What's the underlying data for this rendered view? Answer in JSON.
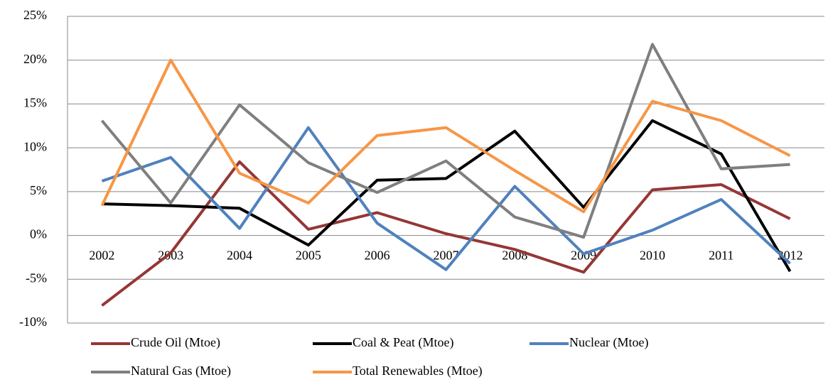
{
  "chart_data": {
    "type": "line",
    "categories": [
      "2002",
      "2003",
      "2004",
      "2005",
      "2006",
      "2007",
      "2008",
      "2009",
      "2010",
      "2011",
      "2012"
    ],
    "series": [
      {
        "name": "Crude Oil (Mtoe)",
        "color": "#953735",
        "values": [
          -8.0,
          -2.0,
          8.4,
          0.7,
          2.6,
          0.2,
          -1.6,
          -4.2,
          5.2,
          5.8,
          1.9
        ]
      },
      {
        "name": "Coal & Peat (Mtoe)",
        "color": "#000000",
        "values": [
          3.6,
          3.4,
          3.1,
          -1.1,
          6.3,
          6.5,
          11.9,
          3.2,
          13.1,
          9.3,
          -4.1
        ]
      },
      {
        "name": "Nuclear (Mtoe)",
        "color": "#4f81bd",
        "values": [
          6.2,
          8.9,
          0.8,
          12.3,
          1.4,
          -3.9,
          5.6,
          -2.1,
          0.6,
          4.1,
          -3.2
        ]
      },
      {
        "name": "Natural Gas (Mtoe)",
        "color": "#7f7f7f",
        "values": [
          13.1,
          3.7,
          14.9,
          8.3,
          4.9,
          8.5,
          2.1,
          -0.2,
          21.8,
          7.6,
          8.1
        ]
      },
      {
        "name": "Total Renewables (Mtoe)",
        "color": "#f79646",
        "values": [
          3.4,
          20.0,
          7.1,
          3.7,
          11.4,
          12.3,
          7.4,
          2.7,
          15.3,
          13.1,
          9.1
        ]
      }
    ],
    "ylim": [
      -10,
      25
    ],
    "yticks": [
      {
        "value": -10,
        "label": "-10%"
      },
      {
        "value": -5,
        "label": "-5%"
      },
      {
        "value": 0,
        "label": "0%"
      },
      {
        "value": 5,
        "label": "5%"
      },
      {
        "value": 10,
        "label": "10%"
      },
      {
        "value": 15,
        "label": "15%"
      },
      {
        "value": 20,
        "label": "20%"
      },
      {
        "value": 25,
        "label": "25%"
      }
    ],
    "grid": true,
    "legend": "bottom"
  }
}
